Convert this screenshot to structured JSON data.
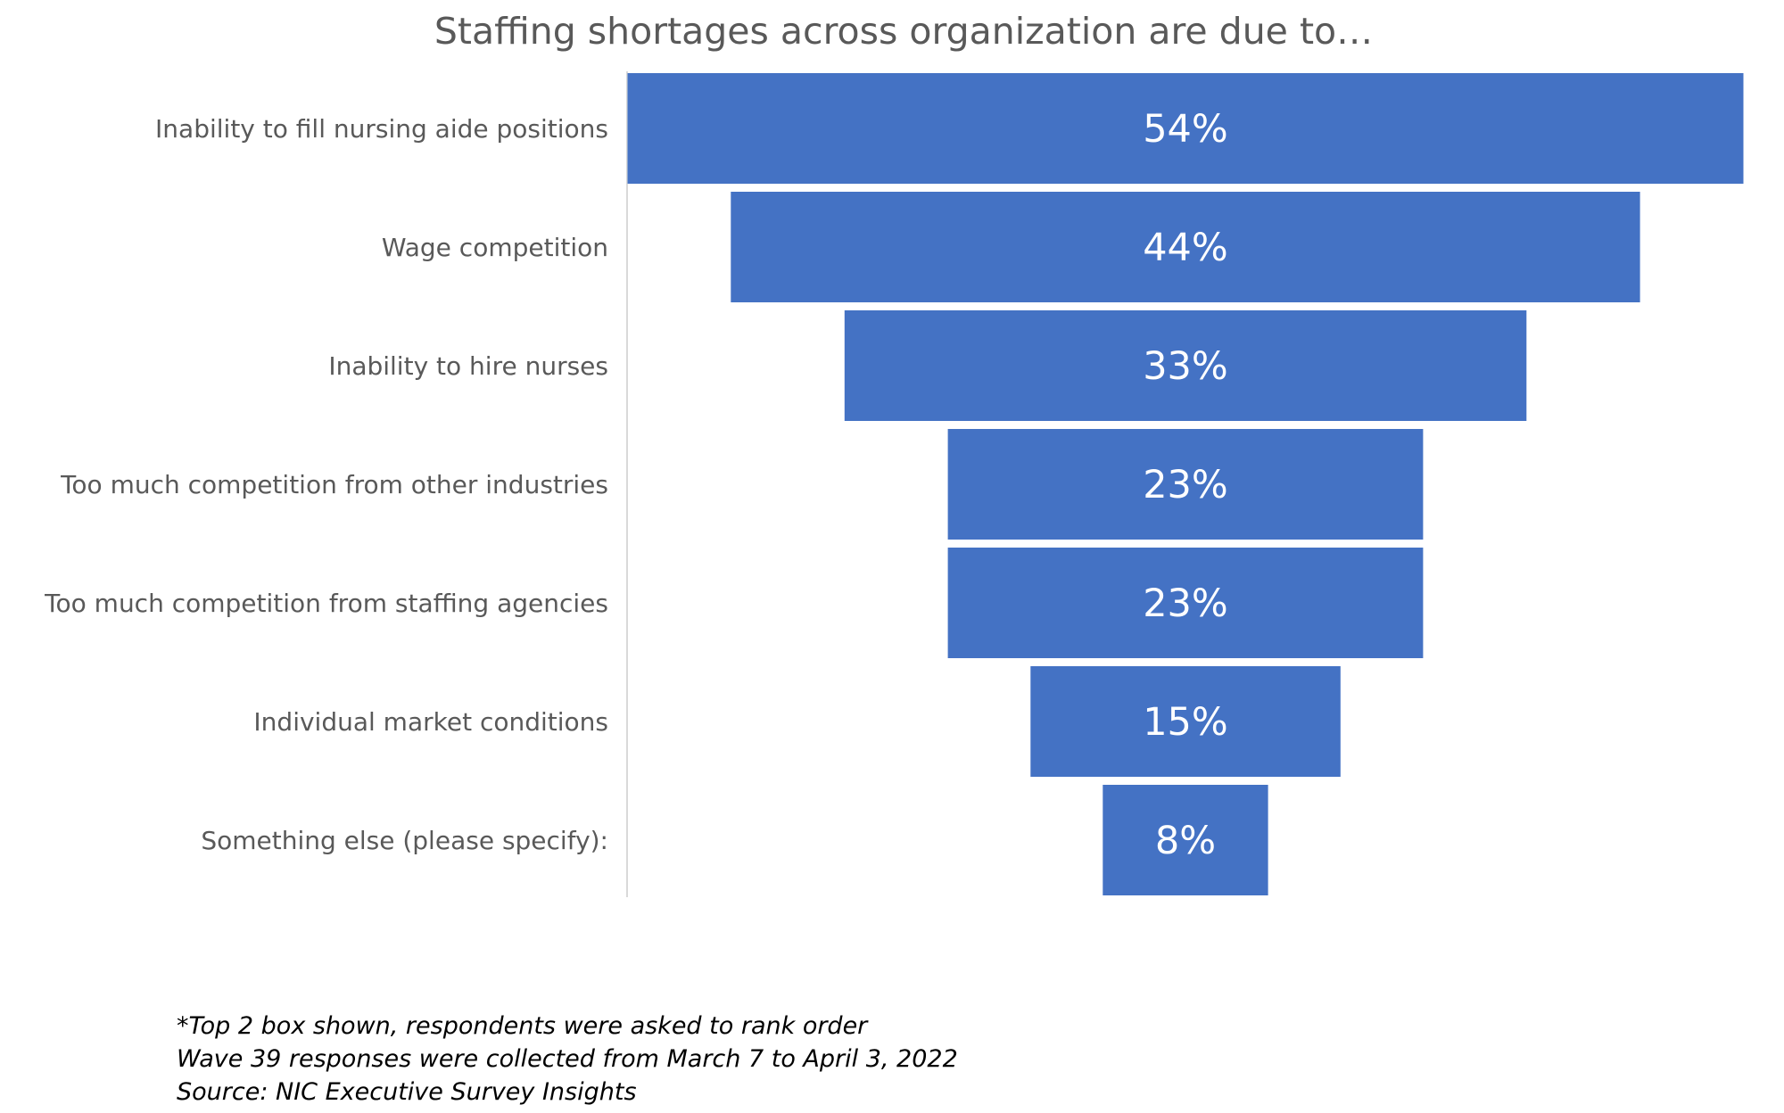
{
  "title": "Staffing shortages across organization are due to…",
  "colors": {
    "bar": "#4472C4",
    "axis": "#D9D9D9",
    "text": "#595959"
  },
  "chart_data": {
    "type": "bar",
    "orientation": "horizontal-centered-funnel",
    "title": "Staffing shortages across organization are due to…",
    "categories": [
      "Inability to fill nursing aide positions",
      "Wage competition",
      "Inability to hire nurses",
      "Too much competition from other industries",
      "Too much competition from staffing agencies",
      "Individual market conditions",
      "Something else (please specify):"
    ],
    "values": [
      54,
      44,
      33,
      23,
      23,
      15,
      8
    ],
    "value_labels": [
      "54%",
      "44%",
      "33%",
      "23%",
      "23%",
      "15%",
      "8%"
    ],
    "unit": "%",
    "xlim": [
      0,
      54
    ],
    "grid": false,
    "legend": "none"
  },
  "footnotes": [
    "*Top 2 box shown, respondents were asked to rank order",
    "Wave 39 responses were collected from March 7 to April 3, 2022",
    "Source: NIC Executive Survey Insights"
  ]
}
